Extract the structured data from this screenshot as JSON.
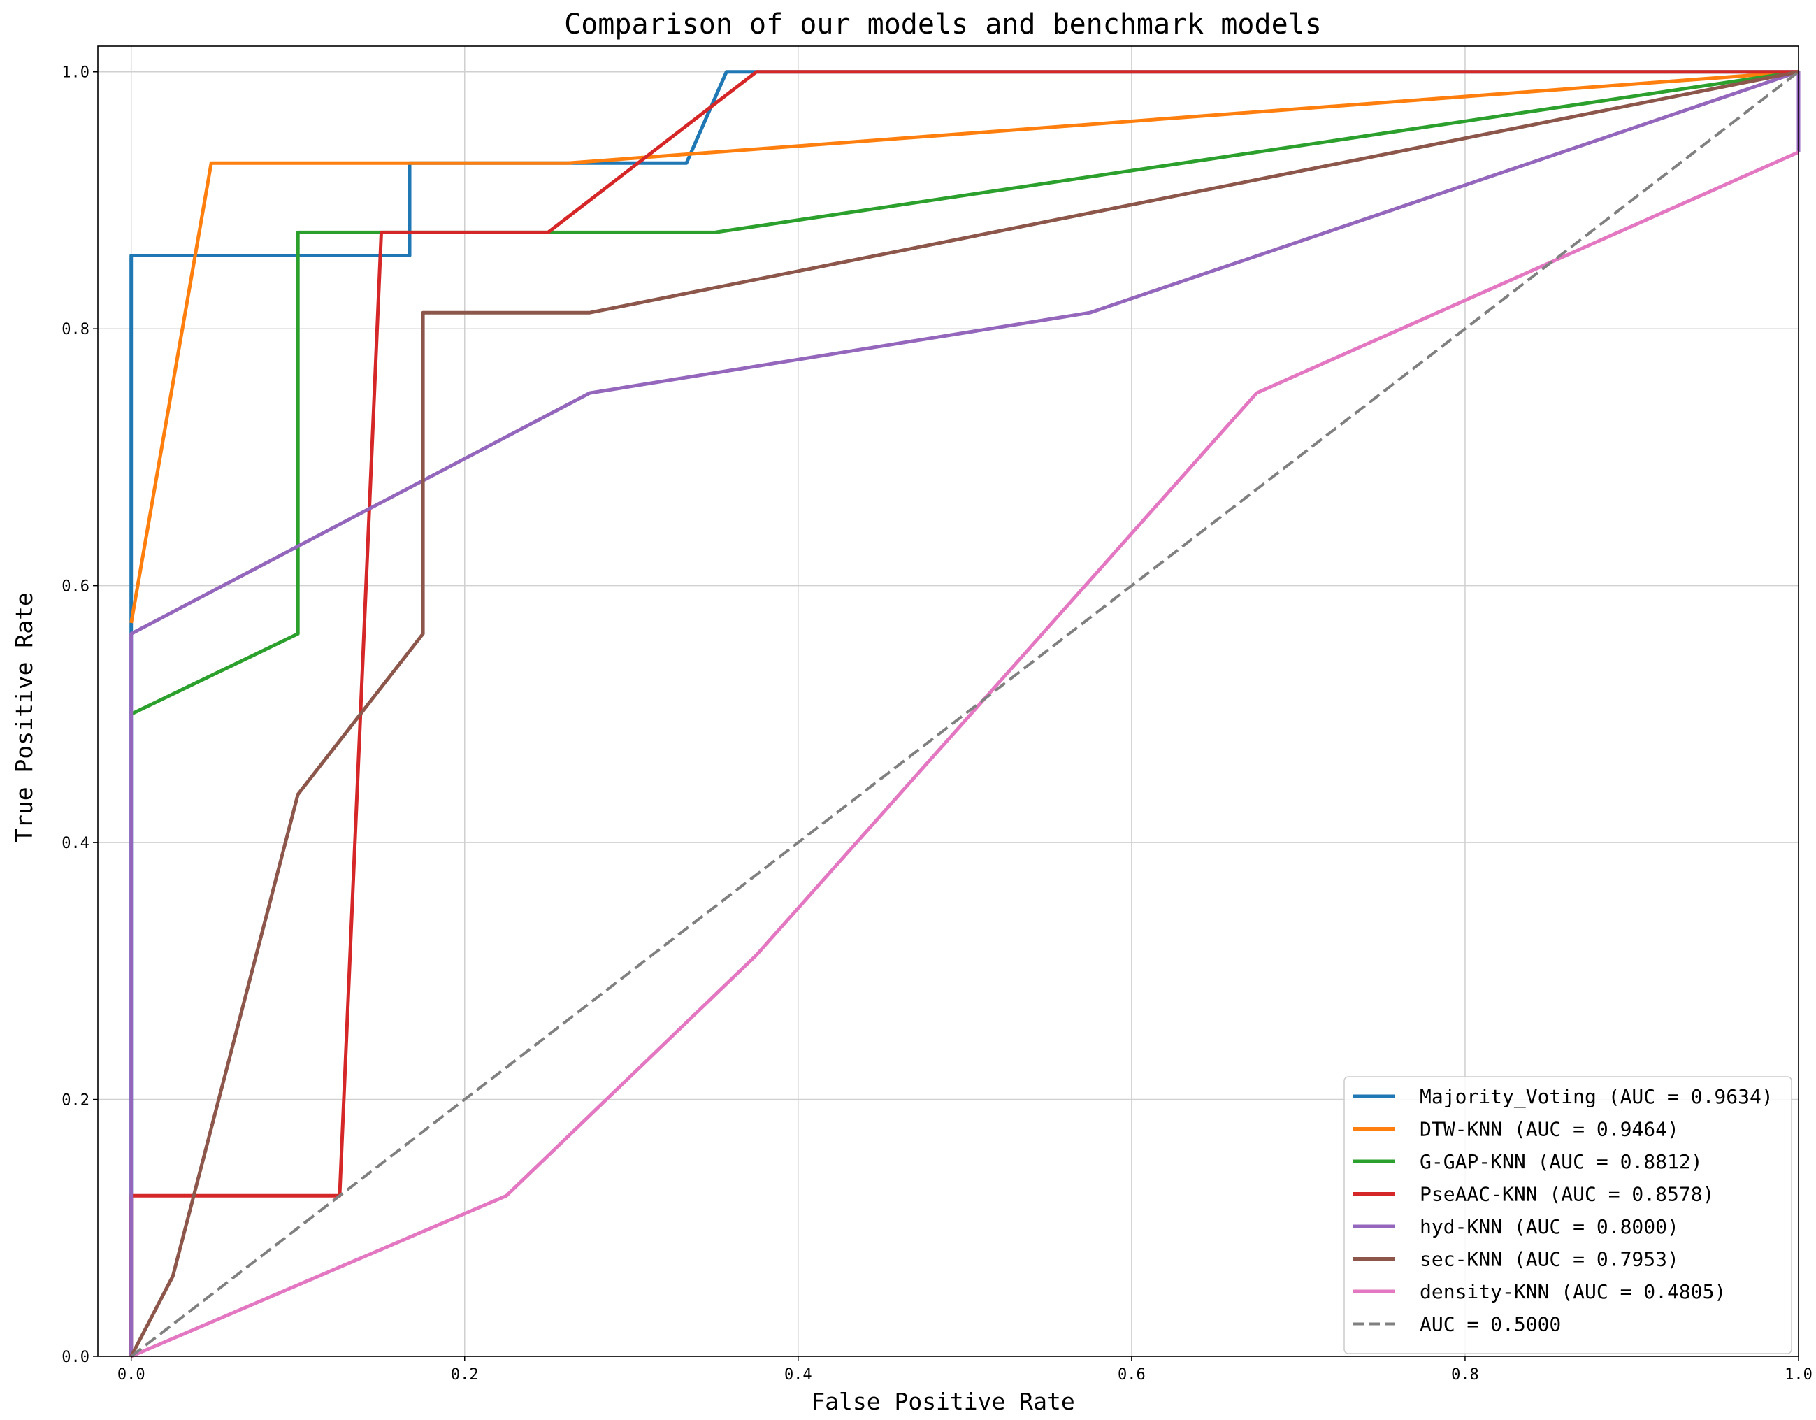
{
  "chart_data": {
    "type": "line",
    "title": "Comparison of our models and benchmark models",
    "xlabel": "False Positive Rate",
    "ylabel": "True Positive Rate",
    "xlim": [
      -0.02,
      1.0
    ],
    "ylim": [
      0.0,
      1.02
    ],
    "xticks": [
      0.0,
      0.2,
      0.4,
      0.6,
      0.8,
      1.0
    ],
    "yticks": [
      0.0,
      0.2,
      0.4,
      0.6,
      0.8,
      1.0
    ],
    "xtick_labels": [
      "0.0",
      "0.2",
      "0.4",
      "0.6",
      "0.8",
      "1.0"
    ],
    "ytick_labels": [
      "0.0",
      "0.2",
      "0.4",
      "0.6",
      "0.8",
      "1.0"
    ],
    "grid": true,
    "legend_position": "lower-right",
    "series": [
      {
        "name": "Majority_Voting (AUC = 0.9634)",
        "color": "#1f77b4",
        "dashed": false,
        "points": [
          [
            0,
            0
          ],
          [
            0,
            0.857
          ],
          [
            0.167,
            0.857
          ],
          [
            0.167,
            0.929
          ],
          [
            0.333,
            0.929
          ],
          [
            0.357,
            1.0
          ],
          [
            1.0,
            1.0
          ]
        ]
      },
      {
        "name": "DTW-KNN (AUC = 0.9464)",
        "color": "#ff7f0e",
        "dashed": false,
        "points": [
          [
            0,
            0.571
          ],
          [
            0.048,
            0.929
          ],
          [
            0.262,
            0.929
          ],
          [
            1.0,
            1.0
          ]
        ]
      },
      {
        "name": "G-GAP-KNN (AUC = 0.8812)",
        "color": "#2ca02c",
        "dashed": false,
        "points": [
          [
            0,
            0.5
          ],
          [
            0.1,
            0.5625
          ],
          [
            0.1,
            0.875
          ],
          [
            0.35,
            0.875
          ],
          [
            1.0,
            1.0
          ]
        ]
      },
      {
        "name": "PseAAC-KNN (AUC = 0.8578)",
        "color": "#d62728",
        "dashed": false,
        "points": [
          [
            0,
            0
          ],
          [
            0,
            0.125
          ],
          [
            0.125,
            0.125
          ],
          [
            0.15,
            0.875
          ],
          [
            0.25,
            0.875
          ],
          [
            0.375,
            1.0
          ],
          [
            1.0,
            1.0
          ]
        ]
      },
      {
        "name": "hyd-KNN (AUC = 0.8000)",
        "color": "#9467bd",
        "dashed": false,
        "points": [
          [
            0,
            0
          ],
          [
            0,
            0.5625
          ],
          [
            0.275,
            0.75
          ],
          [
            0.575,
            0.8125
          ],
          [
            1.0,
            1.0
          ],
          [
            1.0,
            0.9375
          ]
        ]
      },
      {
        "name": "sec-KNN (AUC = 0.7953)",
        "color": "#8c564b",
        "dashed": false,
        "points": [
          [
            0,
            0
          ],
          [
            0.025,
            0.0625
          ],
          [
            0.1,
            0.4375
          ],
          [
            0.175,
            0.5625
          ],
          [
            0.175,
            0.8125
          ],
          [
            0.275,
            0.8125
          ],
          [
            1.0,
            1.0
          ]
        ]
      },
      {
        "name": "density-KNN (AUC = 0.4805)",
        "color": "#e377c2",
        "dashed": false,
        "points": [
          [
            0,
            0
          ],
          [
            0.225,
            0.125
          ],
          [
            0.375,
            0.3125
          ],
          [
            0.675,
            0.75
          ],
          [
            1.0,
            0.9375
          ]
        ]
      },
      {
        "name": "AUC = 0.5000",
        "color": "#808080",
        "dashed": true,
        "points": [
          [
            0,
            0
          ],
          [
            1.0,
            1.0
          ]
        ]
      }
    ]
  }
}
